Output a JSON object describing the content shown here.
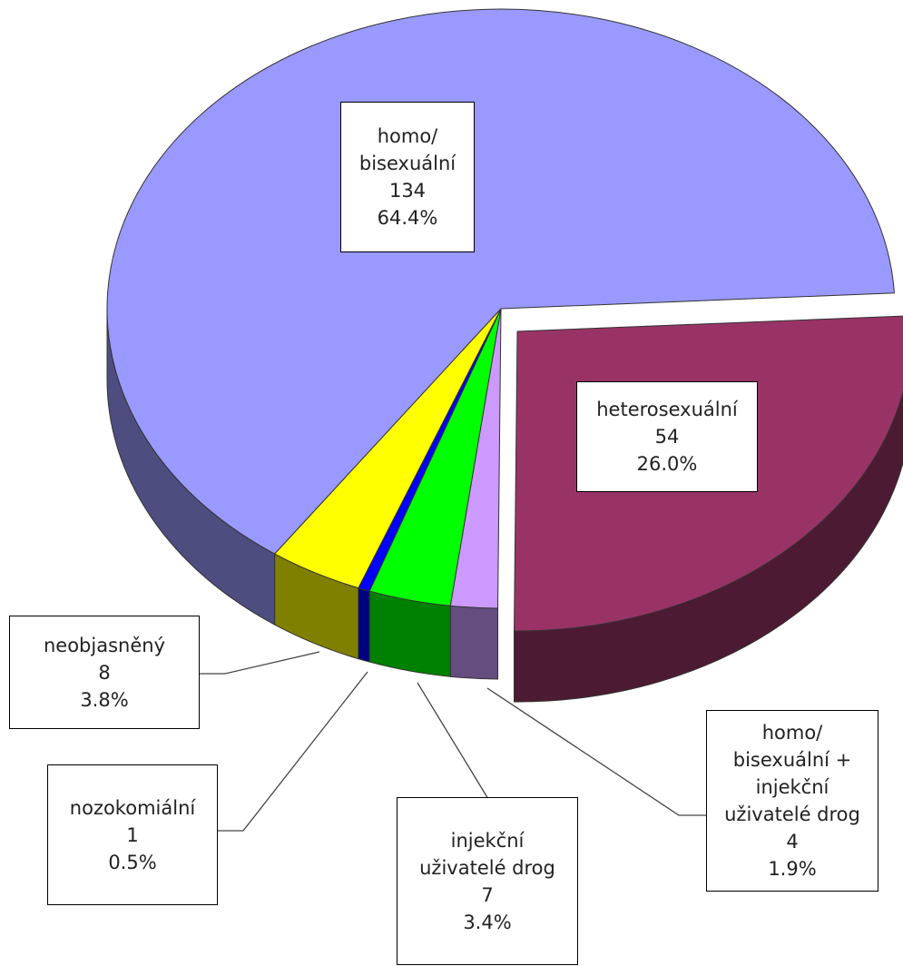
{
  "chart_data": {
    "type": "pie3d",
    "categories": [
      "heterosexuální",
      "homo/\nbisexuální +\ninjekční\nuživatelé drog",
      "injekční\nuživatelé drog",
      "nozokomiální",
      "neobjasněný",
      "homo/\nbisexuální"
    ],
    "values": [
      54,
      4,
      7,
      1,
      8,
      134
    ],
    "percent_labels": [
      "26.0%",
      "1.9%",
      "3.4%",
      "0.5%",
      "3.8%",
      "64.4%"
    ],
    "colors": [
      "#993366",
      "#cc99ff",
      "#00ff00",
      "#0000ff",
      "#ffff00",
      "#9999ff"
    ],
    "exploded": [
      true,
      false,
      false,
      false,
      false,
      false
    ]
  }
}
